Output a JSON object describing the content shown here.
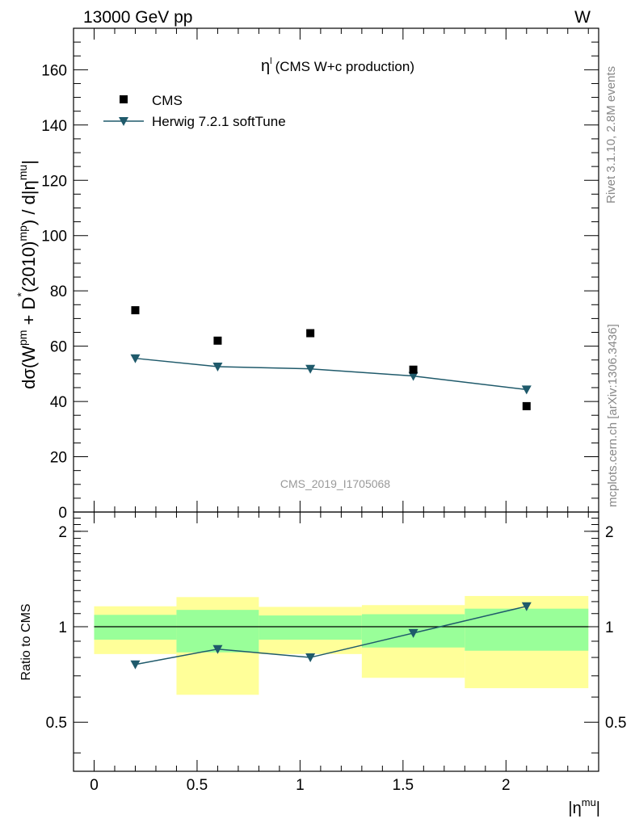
{
  "header": {
    "left": "13000 GeV pp",
    "right": "W"
  },
  "side": {
    "rivet": "Rivet 3.1.10,  2.8M events",
    "mcplots": "mcplots.cern.ch [arXiv:1306.3436]"
  },
  "watermark": "CMS_2019_I1705068",
  "chart_data": [
    {
      "type": "scatter",
      "title": "(CMS W+c production)",
      "title_symbol": "η",
      "title_sup": "l",
      "ylabel_parts": [
        "dσ(W",
        "pm",
        " + D",
        "*",
        "(2010)",
        "mp",
        ") / d|η",
        "mu",
        "|"
      ],
      "xlim": [
        -0.1,
        2.45
      ],
      "ylim": [
        0,
        175
      ],
      "yticks": [
        0,
        20,
        40,
        60,
        80,
        100,
        120,
        140,
        160
      ],
      "yticklabels": [
        "0",
        "20",
        "40",
        "60",
        "80",
        "100",
        "120",
        "140",
        "160"
      ],
      "legend_position": "top-left",
      "series": [
        {
          "name": "CMS",
          "style": "marker-square",
          "color": "#000000",
          "x": [
            0.2,
            0.6,
            1.05,
            1.55,
            2.1
          ],
          "y": [
            73.0,
            62.0,
            64.7,
            51.5,
            38.3
          ]
        },
        {
          "name": "Herwig 7.2.1 softTune",
          "style": "line-triangle",
          "color": "#1f5a6b",
          "x": [
            0.2,
            0.6,
            1.05,
            1.55,
            2.1
          ],
          "y": [
            55.6,
            52.6,
            51.8,
            49.2,
            44.3
          ]
        }
      ]
    },
    {
      "type": "area",
      "ylabel": "Ratio to CMS",
      "xlabel_base": "|η",
      "xlabel_sup": "mu",
      "xlabel_end": "|",
      "xlim": [
        -0.1,
        2.45
      ],
      "ylim": [
        0.35,
        2.3
      ],
      "xticks": [
        0,
        0.5,
        1,
        1.5,
        2
      ],
      "xticklabels": [
        "0",
        "0.5",
        "1",
        "1.5",
        "2"
      ],
      "yticks": [
        0.5,
        1,
        2
      ],
      "yticklabels": [
        "0.5",
        "1",
        "2"
      ],
      "reference": 1.0,
      "bins": [
        {
          "lo": 0.0,
          "hi": 0.4,
          "y_lo": 0.82,
          "y_hi": 1.16,
          "g_lo": 0.91,
          "g_hi": 1.09
        },
        {
          "lo": 0.4,
          "hi": 0.8,
          "y_lo": 0.61,
          "y_hi": 1.24,
          "g_lo": 0.83,
          "g_hi": 1.13
        },
        {
          "lo": 0.8,
          "hi": 1.3,
          "y_lo": 0.82,
          "y_hi": 1.155,
          "g_lo": 0.91,
          "g_hi": 1.085
        },
        {
          "lo": 1.3,
          "hi": 1.8,
          "y_lo": 0.69,
          "y_hi": 1.17,
          "g_lo": 0.86,
          "g_hi": 1.095
        },
        {
          "lo": 1.8,
          "hi": 2.4,
          "y_lo": 0.64,
          "y_hi": 1.25,
          "g_lo": 0.84,
          "g_hi": 1.14
        }
      ],
      "series": [
        {
          "name": "Herwig 7.2.1 softTune",
          "color": "#1f5a6b",
          "x": [
            0.2,
            0.6,
            1.05,
            1.55,
            2.1
          ],
          "y": [
            0.76,
            0.85,
            0.8,
            0.955,
            1.16
          ]
        }
      ]
    }
  ]
}
